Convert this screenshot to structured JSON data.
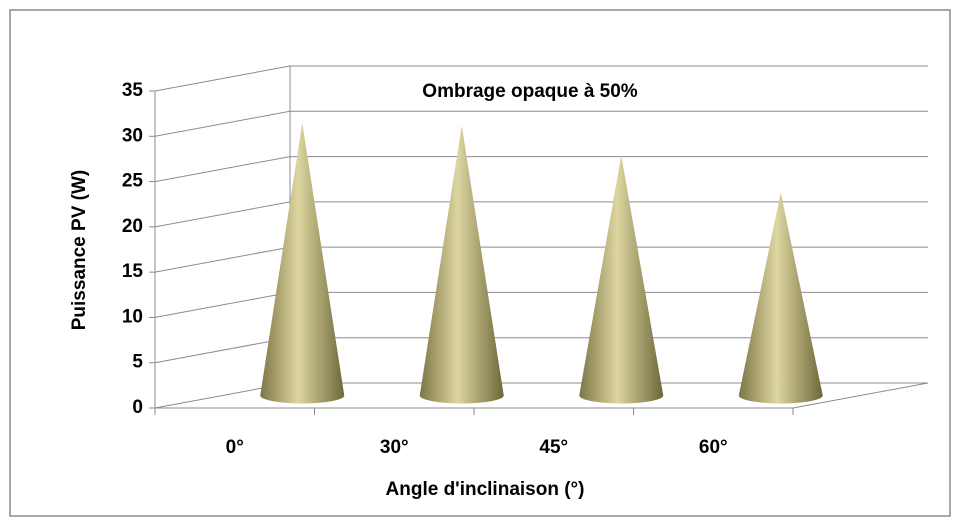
{
  "chart_data": {
    "type": "cone3d",
    "title": "Ombrage opaque à 50%",
    "x_label": "Angle d'inclinaison (°)",
    "y_label": "Puissance PV (W)",
    "categories": [
      "0°",
      "30°",
      "45°",
      "60°"
    ],
    "values": [
      30.1,
      29.8,
      26.5,
      22.4
    ],
    "color": "#b5ac72",
    "ylim": [
      0,
      35
    ],
    "yticks": [
      0,
      5,
      10,
      15,
      20,
      25,
      30,
      35
    ],
    "grid": true
  }
}
